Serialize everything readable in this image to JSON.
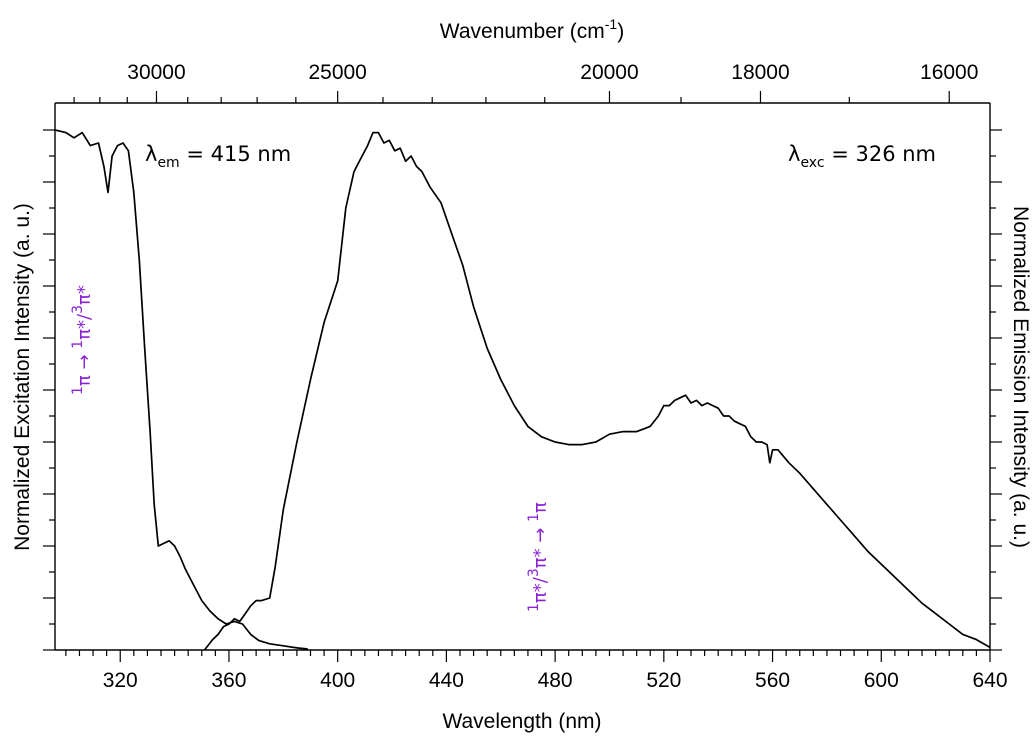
{
  "chart_data": {
    "type": "line",
    "xlabel": "Wavelength (nm)",
    "x2label": "Wavenumber (cm",
    "x2label_exp": "-1",
    "x2label_close": ")",
    "ylabel_left": "Normalized Excitation Intensity (a. u.)",
    "ylabel_right": "Normalized Emission Intensity (a. u.)",
    "xlim": [
      296,
      640
    ],
    "ylim": [
      0,
      1
    ],
    "x_ticks": [
      "320",
      "360",
      "400",
      "440",
      "480",
      "520",
      "560",
      "600",
      "640"
    ],
    "x2_ticks": [
      "30000",
      "25000",
      "20000",
      "18000",
      "16000"
    ],
    "grid": false,
    "legend": "none",
    "color": "#000000",
    "annotation_color": "#8a22d6",
    "annotations": {
      "excitation": {
        "lambda": "λ",
        "sub": "em",
        "rest": " = 415 nm"
      },
      "emission": {
        "lambda": "λ",
        "sub": "exc",
        "rest": " = 326 nm"
      },
      "transition_left": {
        "pre": "1",
        "a": "π → ",
        "b": "1",
        "c": "π*/",
        "d": "3",
        "e": "π*"
      },
      "transition_right": {
        "pre": "1",
        "a": "π*/",
        "b": "3",
        "c": "π* → ",
        "d": "1",
        "e": "π"
      }
    },
    "series": [
      {
        "x": [
          296,
          300,
          303,
          306,
          309,
          312,
          314,
          315.5,
          317,
          319,
          321,
          323,
          325,
          327,
          329,
          331,
          332.5,
          334,
          336,
          338,
          340,
          342,
          344,
          347,
          350,
          353,
          356,
          359,
          362,
          365,
          368,
          371,
          375,
          380,
          385,
          389
        ],
        "y": [
          1.0,
          0.995,
          0.985,
          0.995,
          0.97,
          0.975,
          0.93,
          0.88,
          0.95,
          0.97,
          0.975,
          0.96,
          0.88,
          0.75,
          0.58,
          0.42,
          0.28,
          0.2,
          0.205,
          0.21,
          0.2,
          0.18,
          0.155,
          0.125,
          0.095,
          0.075,
          0.06,
          0.05,
          0.055,
          0.05,
          0.03,
          0.018,
          0.012,
          0.008,
          0.004,
          0.002
        ]
      },
      {
        "x": [
          351,
          354,
          356,
          358,
          360,
          362,
          364,
          366,
          368,
          370,
          372,
          375,
          377,
          380,
          385,
          390,
          395,
          400,
          403,
          406,
          409,
          411,
          413,
          415,
          417,
          419,
          421,
          423,
          425,
          427,
          429,
          431,
          434,
          438,
          442,
          446,
          450,
          455,
          460,
          465,
          470,
          475,
          480,
          485,
          490,
          495,
          500,
          505,
          510,
          515,
          518,
          520,
          522,
          524,
          526,
          528,
          530,
          532,
          534,
          536,
          538,
          540,
          542,
          544,
          546,
          548,
          550,
          552,
          554,
          556,
          558,
          559,
          560,
          562,
          566,
          570,
          575,
          580,
          585,
          590,
          595,
          600,
          605,
          610,
          615,
          620,
          625,
          630,
          635,
          640
        ],
        "y": [
          0.0,
          0.02,
          0.03,
          0.045,
          0.05,
          0.06,
          0.055,
          0.07,
          0.085,
          0.095,
          0.095,
          0.1,
          0.16,
          0.27,
          0.4,
          0.52,
          0.63,
          0.71,
          0.85,
          0.92,
          0.95,
          0.97,
          0.995,
          0.995,
          0.975,
          0.98,
          0.96,
          0.965,
          0.94,
          0.95,
          0.93,
          0.92,
          0.89,
          0.86,
          0.8,
          0.74,
          0.66,
          0.58,
          0.52,
          0.47,
          0.43,
          0.41,
          0.4,
          0.395,
          0.395,
          0.4,
          0.415,
          0.42,
          0.42,
          0.43,
          0.45,
          0.47,
          0.47,
          0.48,
          0.485,
          0.49,
          0.475,
          0.48,
          0.47,
          0.475,
          0.47,
          0.465,
          0.45,
          0.45,
          0.44,
          0.435,
          0.43,
          0.41,
          0.4,
          0.4,
          0.395,
          0.36,
          0.385,
          0.385,
          0.36,
          0.34,
          0.31,
          0.28,
          0.25,
          0.22,
          0.19,
          0.165,
          0.14,
          0.115,
          0.09,
          0.07,
          0.05,
          0.03,
          0.02,
          0.005
        ]
      }
    ]
  }
}
